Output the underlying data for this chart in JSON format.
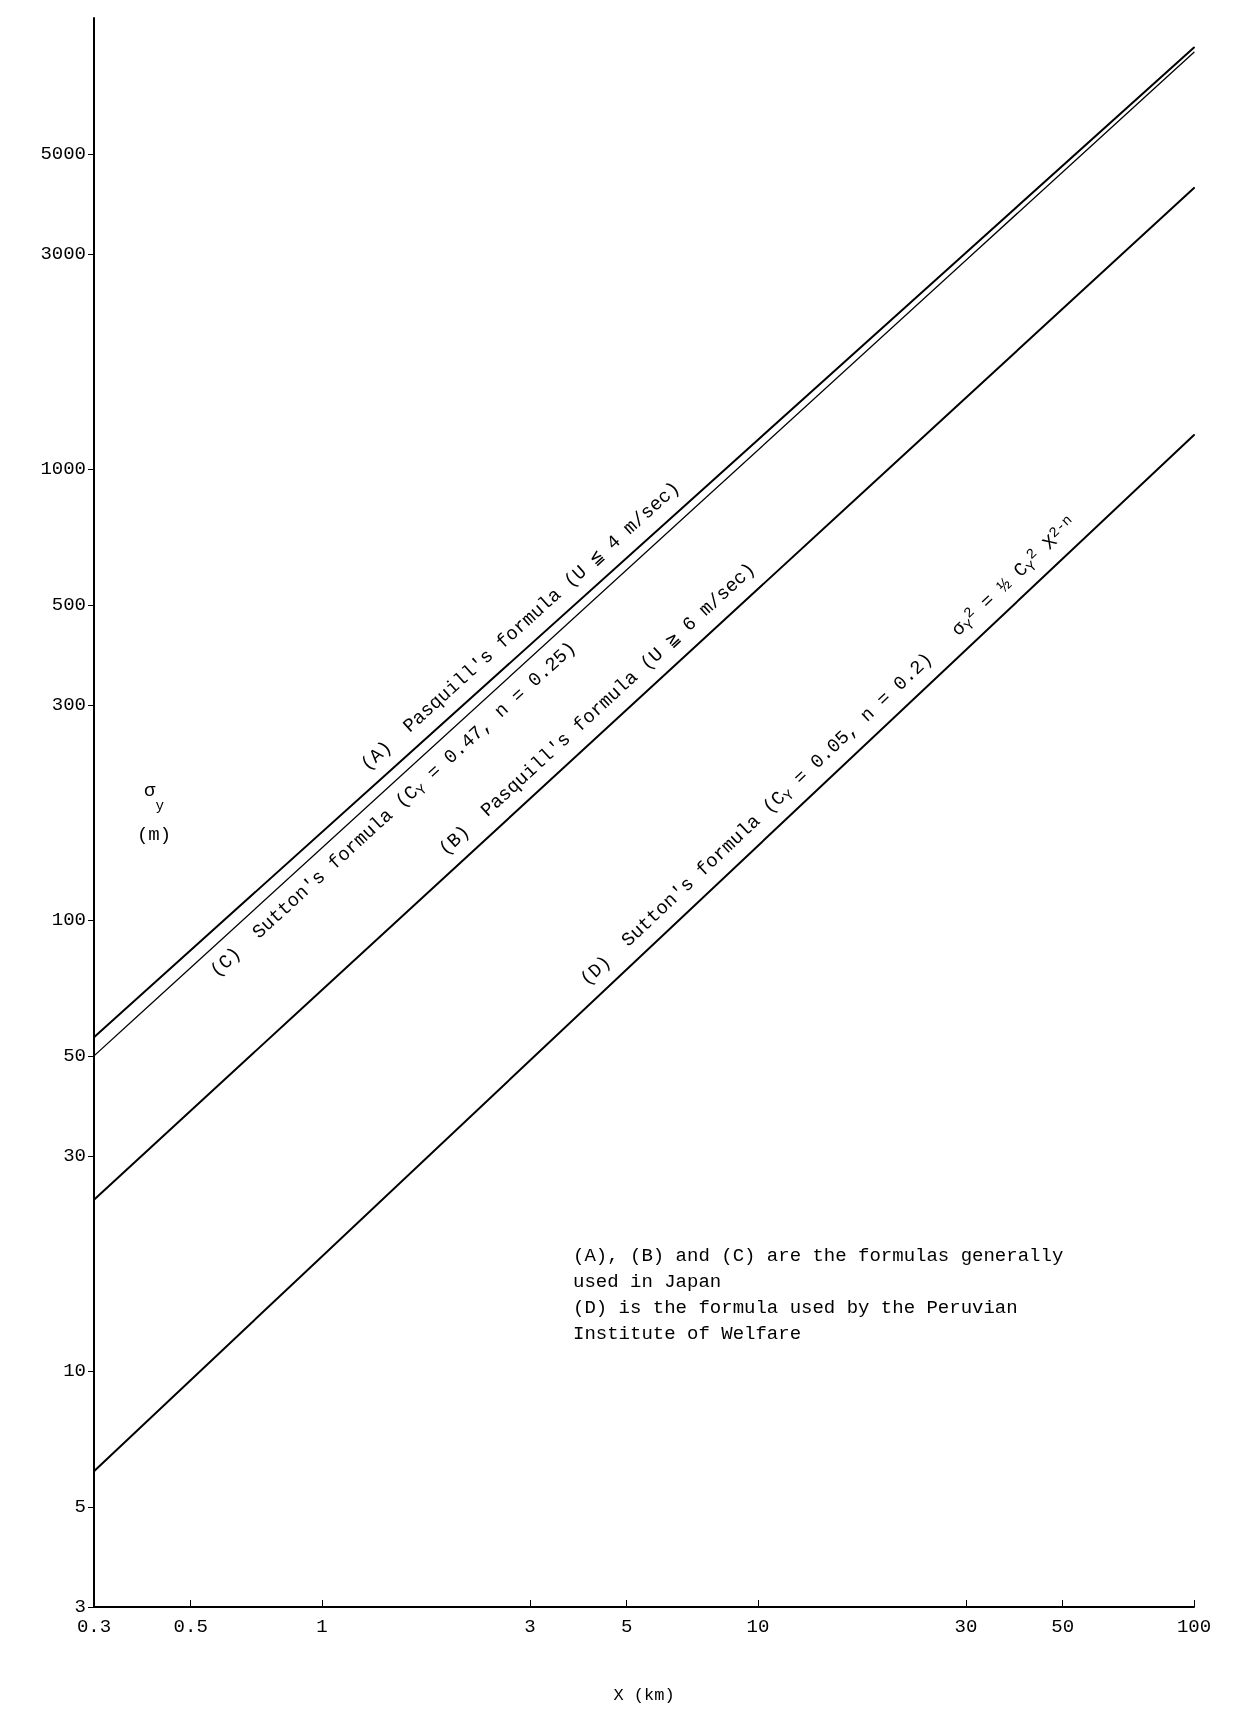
{
  "chart_data": {
    "type": "line",
    "x": [
      0.3,
      100
    ],
    "series": [
      {
        "color": "#000000",
        "values": [
          55,
          8600
        ]
      },
      {
        "color": "#000000",
        "values": [
          50,
          8400
        ]
      },
      {
        "color": "#000000",
        "values": [
          24,
          4200
        ]
      },
      {
        "color": "#000000",
        "values": [
          6,
          1190
        ]
      }
    ],
    "log": "xy",
    "xlim": [
      0.3,
      100
    ],
    "ylim": [
      3,
      10000
    ],
    "xticks": [
      0.3,
      0.5,
      1,
      3,
      5,
      10,
      30,
      50,
      100
    ],
    "yticks": [
      3,
      5,
      10,
      30,
      50,
      100,
      300,
      500,
      1000,
      3000,
      5000
    ],
    "xlabel": "X (km)",
    "ylabel": "σ$_{y}$\n(m)",
    "grid": false,
    "marker": "none",
    "line_style": "solid",
    "annotations": [
      "(A)  Pasquill's formula (U ≦ 4 m/sec)",
      "(C)  Sutton's formula (C$_{Y}$ = 0.47, n = 0.25)",
      "(B)  Pasquill's formula (U ≧ 6 m/sec)",
      "(D)  Sutton's formula (C$_{Y}$ = 0.05, n = 0.2)   σ$_{Y}$$^{2}$ = ½ C$_{Y}$$^{2}$ X$^{2-n}$",
      "(A), (B) and (C) are the formulas generally used in Japan",
      "(D) is the formula used by the Peruvian Institute of Welfare"
    ]
  }
}
